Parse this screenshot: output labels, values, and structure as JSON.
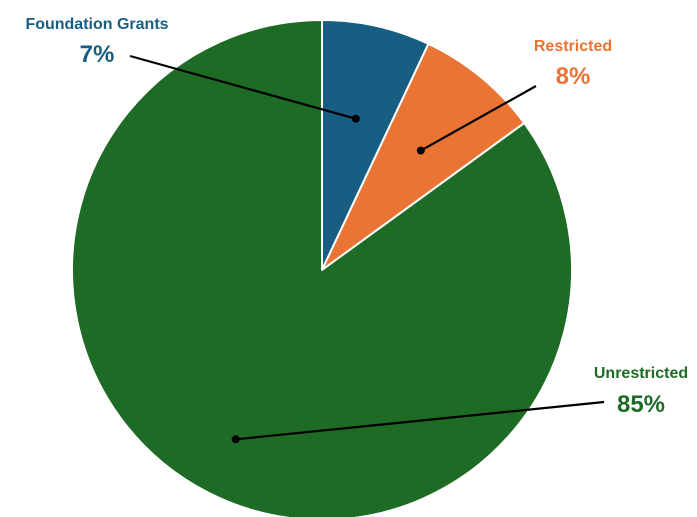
{
  "chart_data": {
    "type": "pie",
    "title": "",
    "slices": [
      {
        "label": "Foundation Grants",
        "value": 7,
        "value_label": "7%",
        "color": "#175e82"
      },
      {
        "label": "Restricted",
        "value": 8,
        "value_label": "8%",
        "color": "#e97434"
      },
      {
        "label": "Unrestricted",
        "value": 85,
        "value_label": "85%",
        "color": "#1e6b26"
      }
    ],
    "start_angle": "12 o'clock",
    "direction": "clockwise",
    "slice_border_color": "#ffffff",
    "legend": "none",
    "labels": "outside with leader lines"
  }
}
